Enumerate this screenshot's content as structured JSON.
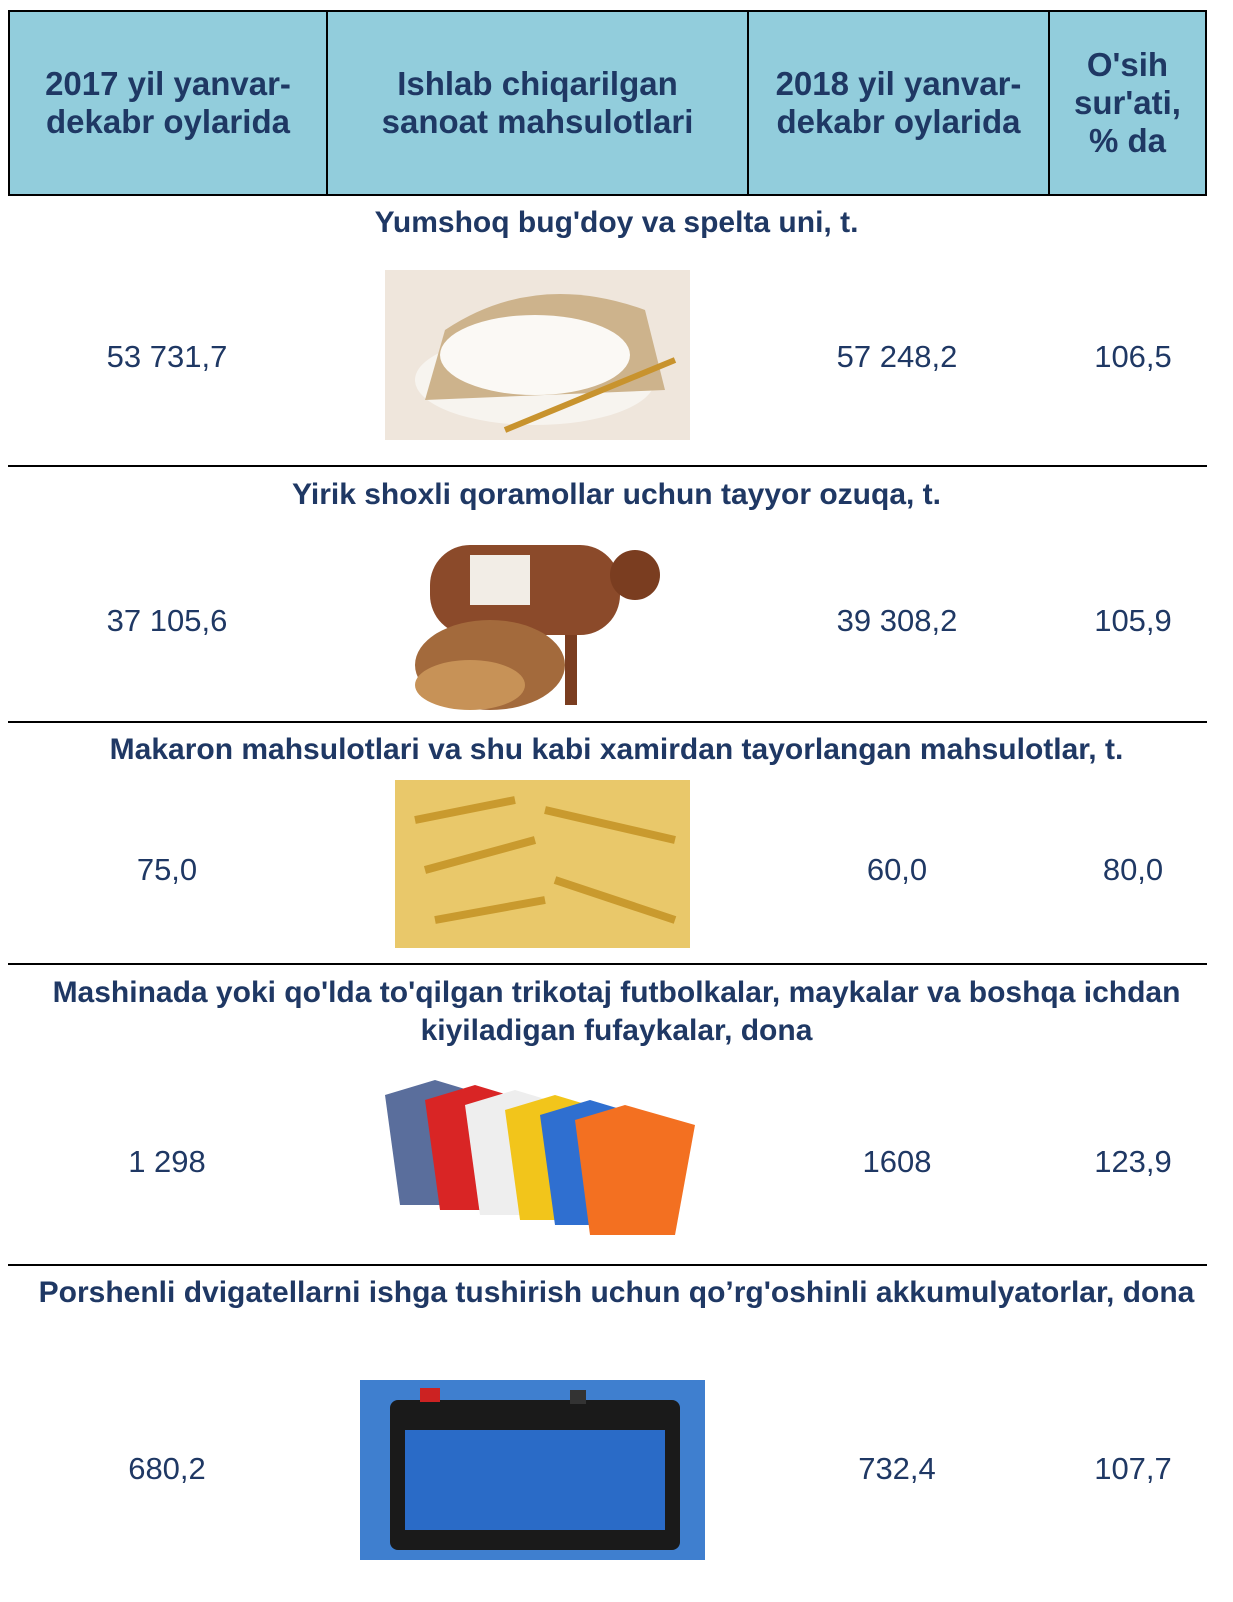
{
  "header": {
    "columns": [
      "2017 yil yanvar-dekabr oylarida",
      "Ishlab chiqarilgan sanoat mahsulotlari",
      "2018 yil yanvar-dekabr oylarida",
      "O'sih sur'ati, % da"
    ]
  },
  "sections": [
    {
      "title": "Yumshoq bug'doy va spelta uni, t.",
      "values": [
        "53 731,7",
        "57 248,2",
        "106,5"
      ]
    },
    {
      "title": "Yirik shoxli qoramollar uchun tayyor ozuqa, t.",
      "values": [
        "37 105,6",
        "39 308,2",
        "105,9"
      ]
    },
    {
      "title": "Makaron mahsulotlari va shu kabi xamirdan tayorlangan mahsulotlar, t.",
      "values": [
        "75,0",
        "60,0",
        "80,0"
      ]
    },
    {
      "title": "Mashinada yoki qo'lda to'qilgan trikotaj futbolkalar, maykalar va boshqa ichdan kiyiladigan fufaykalar, dona",
      "values": [
        "1 298",
        "1608",
        "123,9"
      ]
    },
    {
      "title": "Porshenli dvigatellarni ishga tushirish uchun qo’rg'oshinli akkumulyatorlar, dona",
      "values": [
        "680,2",
        "732,4",
        "107,7"
      ]
    }
  ]
}
